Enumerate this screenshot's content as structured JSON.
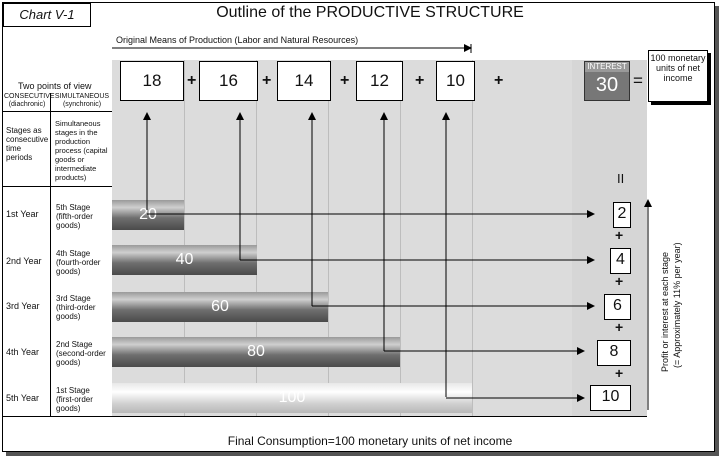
{
  "chart_tag": "Chart V-1",
  "title": "Outline of the PRODUCTIVE STRUCTURE",
  "means_label": "Original Means of Production (Labor and Natural Resources)",
  "top_values": [
    "18",
    "16",
    "14",
    "12",
    "10"
  ],
  "plus": "+",
  "interest": {
    "label": "INTEREST",
    "value": "30"
  },
  "equals": "=",
  "net_income": "100 monetary units of net income",
  "two_points": "Two points of view",
  "consecutive": {
    "title": "CONSECUTIVE",
    "sub": "(diachronic)"
  },
  "simultaneous": {
    "title": "SIMULTANEOUS",
    "sub": "(synchronic)"
  },
  "stages_consecutive": "Stages as consecutive time periods",
  "stages_simultaneous": "Simultaneous stages in the production process (capital goods or intermediate products)",
  "equals_vertical": "II",
  "rows": [
    {
      "year": "1st Year",
      "stage_line1": "5th Stage",
      "stage_line2": "(fifth-order",
      "stage_line3": "goods)",
      "bar": "20",
      "profit": "2"
    },
    {
      "year": "2nd Year",
      "stage_line1": "4th Stage",
      "stage_line2": "(fourth-order",
      "stage_line3": "goods)",
      "bar": "40",
      "profit": "4"
    },
    {
      "year": "3rd Year",
      "stage_line1": "3rd Stage",
      "stage_line2": "(third-order",
      "stage_line3": "goods)",
      "bar": "60",
      "profit": "6"
    },
    {
      "year": "4th  Year",
      "stage_line1": "2nd Stage",
      "stage_line2": "(second-order",
      "stage_line3": "goods)",
      "bar": "80",
      "profit": "8"
    },
    {
      "year": "5th Year",
      "stage_line1": "1st Stage",
      "stage_line2": "(first-order",
      "stage_line3": "goods)",
      "bar": "100",
      "profit": "10"
    }
  ],
  "profit_label_1": "Profit or interest at each stage",
  "profit_label_2": "(= Approximately 11% per year)",
  "final": "Final Consumption=100 monetary units of net income"
}
